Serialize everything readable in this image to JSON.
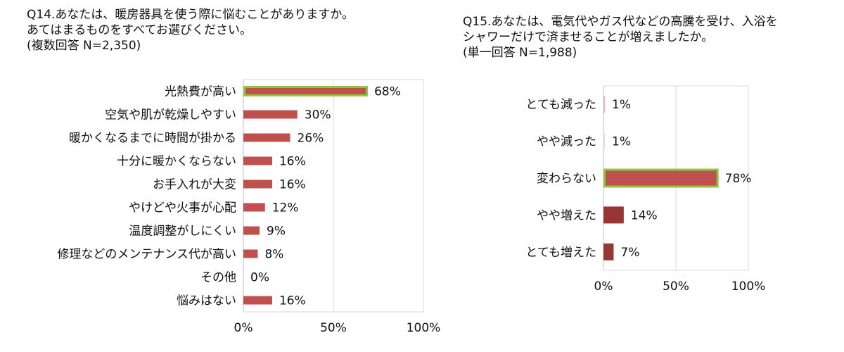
{
  "chart_data": [
    {
      "type": "bar",
      "orientation": "horizontal",
      "title_lines": [
        "Q14.あなたは、暖房器具を使う際に悩むことがありますか。",
        "あてはまるものをすべてお選びください。",
        "(複数回答 N=2,350)"
      ],
      "categories": [
        "光熱費が高い",
        "空気や肌が乾燥しやすい",
        "暖かくなるまでに時間が掛かる",
        "十分に暖かくならない",
        "お手入れが大変",
        "やけどや火事が心配",
        "温度調整がしにくい",
        "修理などのメンテナンス代が高い",
        "その他",
        "悩みはない"
      ],
      "values": [
        68,
        30,
        26,
        16,
        16,
        12,
        9,
        8,
        0,
        16
      ],
      "value_labels": [
        "68%",
        "30%",
        "26%",
        "16%",
        "16%",
        "12%",
        "9%",
        "8%",
        "0%",
        "16%"
      ],
      "highlight_index": 0,
      "xlim": [
        0,
        100
      ],
      "xticks": [
        0,
        50,
        100
      ],
      "xtick_labels": [
        "0%",
        "50%",
        "100%"
      ],
      "bar_color": "#c0504d",
      "highlight_color": "#8dc63f",
      "grid": true
    },
    {
      "type": "bar",
      "orientation": "horizontal",
      "title_lines": [
        "Q15.あなたは、電気代やガス代などの高騰を受け、入浴を",
        "シャワーだけで済ませることが増えましたか。",
        "(単一回答 N=1,988)"
      ],
      "categories": [
        "とても減った",
        "やや減った",
        "変わらない",
        "やや増えた",
        "とても増えた"
      ],
      "values": [
        1,
        1,
        78,
        14,
        7
      ],
      "value_labels": [
        "1%",
        "1%",
        "78%",
        "14%",
        "7%"
      ],
      "highlight_index": 2,
      "bar_colors": [
        "#e6b9b8",
        "#f2dcdb",
        "#c0504d",
        "#963634",
        "#953735"
      ],
      "xlim": [
        0,
        100
      ],
      "xticks": [
        0,
        50,
        100
      ],
      "xtick_labels": [
        "0%",
        "50%",
        "100%"
      ],
      "highlight_color": "#8dc63f",
      "grid": true
    }
  ]
}
